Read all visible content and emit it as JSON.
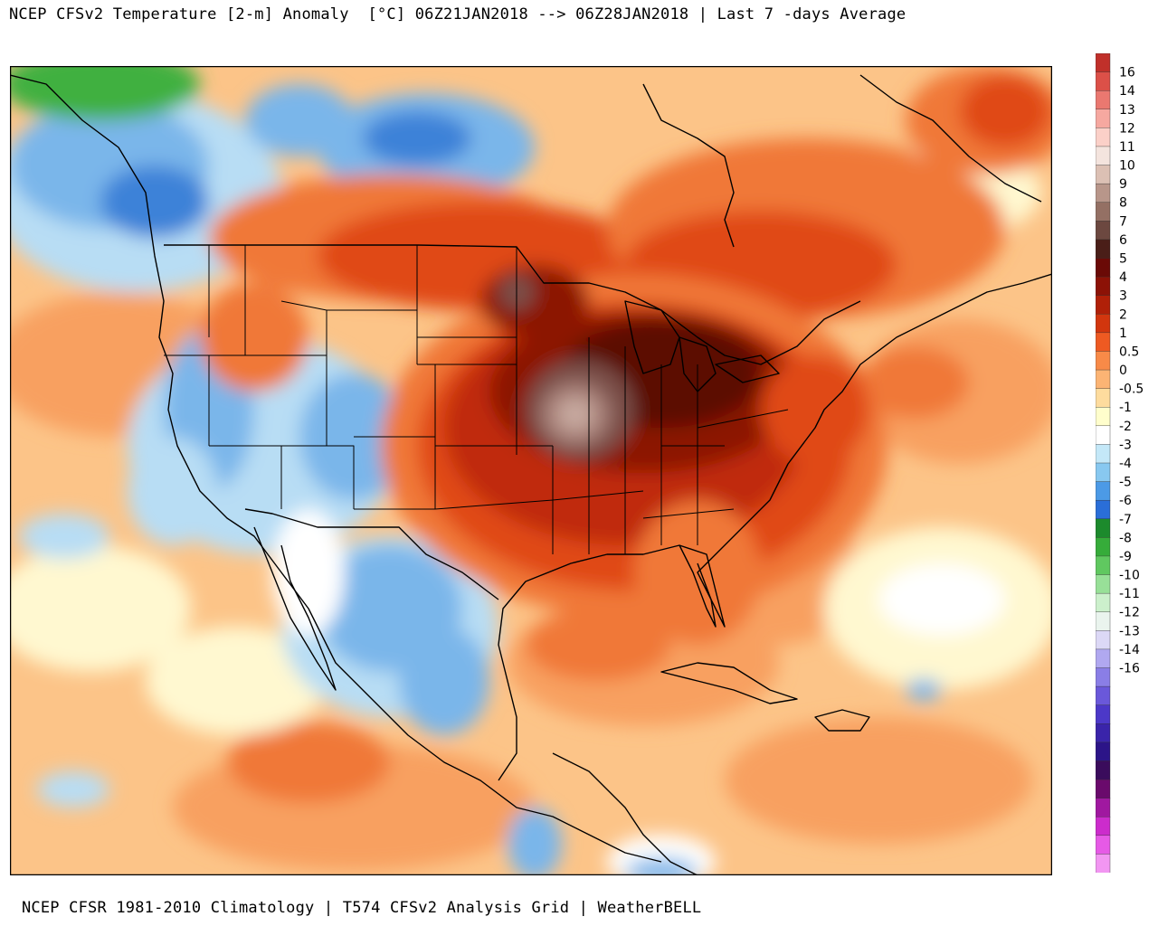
{
  "header": {
    "title": "NCEP CFSv2 Temperature [2-m] Anomaly  [°C] 06Z21JAN2018 --> 06Z28JAN2018 | Last 7 -days Average"
  },
  "footer": {
    "text": "NCEP CFSR 1981-2010 Climatology | T574 CFSv2 Analysis Grid | WeatherBELL"
  },
  "legend": {
    "levels": [
      {
        "label": "16",
        "color": "#c0302a"
      },
      {
        "label": "14",
        "color": "#dc5048"
      },
      {
        "label": "13",
        "color": "#ea7870"
      },
      {
        "label": "12",
        "color": "#f6a8a0"
      },
      {
        "label": "11",
        "color": "#fbd0c8"
      },
      {
        "label": "10",
        "color": "#f4e4de"
      },
      {
        "label": "9",
        "color": "#dcc0b4"
      },
      {
        "label": "8",
        "color": "#b8968a"
      },
      {
        "label": "7",
        "color": "#947064"
      },
      {
        "label": "6",
        "color": "#6c4840"
      },
      {
        "label": "5",
        "color": "#4a1e18"
      },
      {
        "label": "4",
        "color": "#6a0a06"
      },
      {
        "label": "3",
        "color": "#8c1206"
      },
      {
        "label": "2",
        "color": "#b02008"
      },
      {
        "label": "1",
        "color": "#d2360e"
      },
      {
        "label": "0.5",
        "color": "#ee5a22"
      },
      {
        "label": "0",
        "color": "#f88a48"
      },
      {
        "label": "-0.5",
        "color": "#fcb474"
      },
      {
        "label": "-1",
        "color": "#fedc9e"
      },
      {
        "label": "-2",
        "color": "#fffecc"
      },
      {
        "label": "-3",
        "color": "#ffffff"
      },
      {
        "label": "-4",
        "color": "#c4e8f8"
      },
      {
        "label": "-5",
        "color": "#88c8f0"
      },
      {
        "label": "-6",
        "color": "#4c9ae6"
      },
      {
        "label": "-7",
        "color": "#2a6ed8"
      },
      {
        "label": "-8",
        "color": "#1c8a2c"
      },
      {
        "label": "-9",
        "color": "#36ac3a"
      },
      {
        "label": "-10",
        "color": "#60c860"
      },
      {
        "label": "-11",
        "color": "#98e098"
      },
      {
        "label": "-12",
        "color": "#ccf0cc"
      },
      {
        "label": "-13",
        "color": "#eaf4ee"
      },
      {
        "label": "-14",
        "color": "#dcd8f6"
      },
      {
        "label": "-16",
        "color": "#b0a8f0"
      },
      {
        "label": "",
        "color": "#8a7ee6"
      },
      {
        "label": "",
        "color": "#6a58da"
      },
      {
        "label": "",
        "color": "#4c38c8"
      },
      {
        "label": "",
        "color": "#3a24aa"
      },
      {
        "label": "",
        "color": "#2c1488"
      },
      {
        "label": "",
        "color": "#3a0c5c"
      },
      {
        "label": "",
        "color": "#6a0a6c"
      },
      {
        "label": "",
        "color": "#a018a0"
      },
      {
        "label": "",
        "color": "#cc2ccc"
      },
      {
        "label": "",
        "color": "#e65ae6"
      },
      {
        "label": "",
        "color": "#f296f2"
      }
    ]
  },
  "map_colors": {
    "ocean": "#fcc488",
    "warm1": "#f8a060",
    "warm2": "#f07838",
    "warm3": "#e04a18",
    "warm4": "#c02a08",
    "warm5": "#8c1206",
    "warm6": "#5c0806",
    "peak1": "#7a5048",
    "peak2": "#a88078",
    "peak3": "#c8aaa0",
    "pale": "#fff8d0",
    "white": "#ffffff",
    "cool1": "#b8ddf4",
    "cool2": "#7ab6ea",
    "cool3": "#3c82d8",
    "green": "#40b040",
    "line": "#000000",
    "lake": "#909090"
  }
}
